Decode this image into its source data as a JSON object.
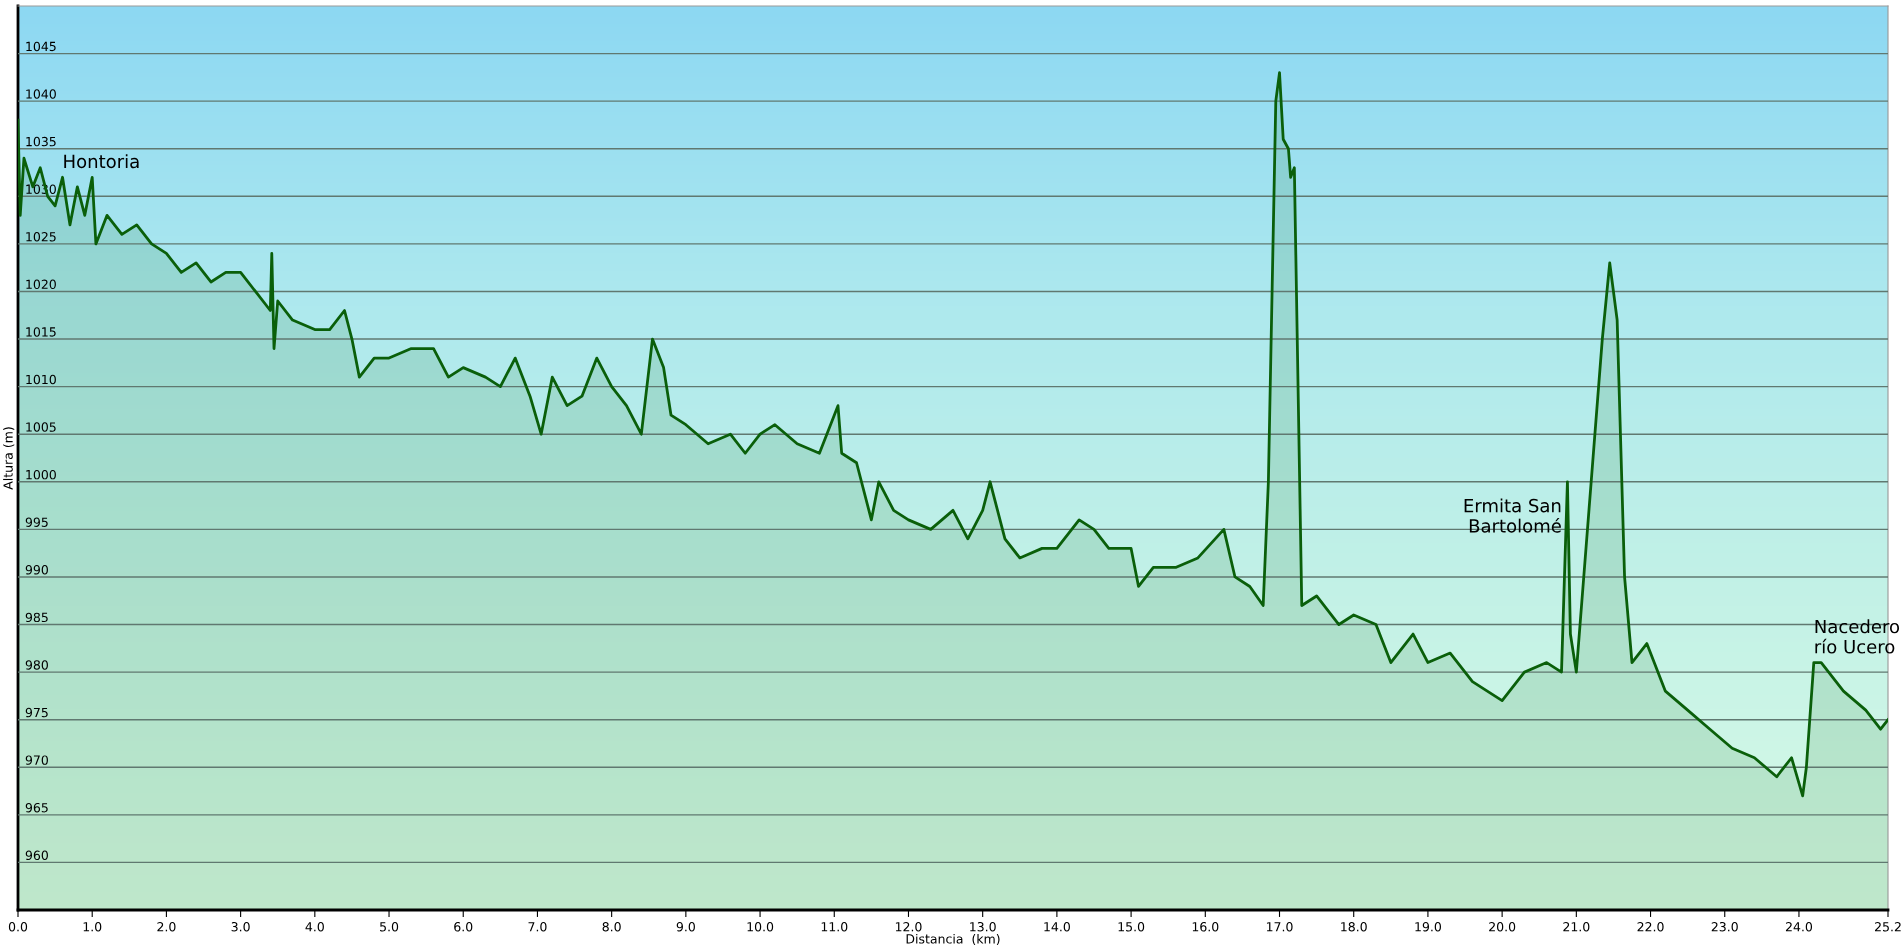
{
  "chart_data": {
    "type": "area",
    "xlabel": "Distancia  (km)",
    "ylabel": "Altura (m)",
    "xlim": [
      0,
      25.2
    ],
    "ylim": [
      955,
      1050
    ],
    "xticks": [
      {
        "value": 0,
        "label": "0.0"
      },
      {
        "value": 1,
        "label": "1.0"
      },
      {
        "value": 2,
        "label": "2.0"
      },
      {
        "value": 3,
        "label": "3.0"
      },
      {
        "value": 4,
        "label": "4.0"
      },
      {
        "value": 5,
        "label": "5.0"
      },
      {
        "value": 6,
        "label": "6.0"
      },
      {
        "value": 7,
        "label": "7.0"
      },
      {
        "value": 8,
        "label": "8.0"
      },
      {
        "value": 9,
        "label": "9.0"
      },
      {
        "value": 10,
        "label": "10.0"
      },
      {
        "value": 11,
        "label": "11.0"
      },
      {
        "value": 12,
        "label": "12.0"
      },
      {
        "value": 13,
        "label": "13.0"
      },
      {
        "value": 14,
        "label": "14.0"
      },
      {
        "value": 15,
        "label": "15.0"
      },
      {
        "value": 16,
        "label": "16.0"
      },
      {
        "value": 17,
        "label": "17.0"
      },
      {
        "value": 18,
        "label": "18.0"
      },
      {
        "value": 19,
        "label": "19.0"
      },
      {
        "value": 20,
        "label": "20.0"
      },
      {
        "value": 21,
        "label": "21.0"
      },
      {
        "value": 22,
        "label": "22.0"
      },
      {
        "value": 23,
        "label": "23.0"
      },
      {
        "value": 24,
        "label": "24.0"
      },
      {
        "value": 25.2,
        "label": "25.2"
      }
    ],
    "yticks": [
      960,
      965,
      970,
      975,
      980,
      985,
      990,
      995,
      1000,
      1005,
      1010,
      1015,
      1020,
      1025,
      1030,
      1035,
      1040,
      1045
    ],
    "grid": "y",
    "legend": false,
    "annotations": [
      {
        "text": "Hontoria",
        "x": 0.6,
        "y": 1032
      },
      {
        "text": "Ermita San\nBartolomé",
        "x": 20.88,
        "y": 1000
      },
      {
        "text": "Nacedero\nrío Ucero",
        "x": 24.2,
        "y": 981
      }
    ],
    "series": [
      {
        "color": "#0a5f0a",
        "x": [
          0.0,
          0.03,
          0.08,
          0.2,
          0.3,
          0.4,
          0.5,
          0.6,
          0.7,
          0.8,
          0.9,
          1.0,
          1.05,
          1.2,
          1.4,
          1.6,
          1.8,
          2.0,
          2.2,
          2.4,
          2.6,
          2.8,
          3.0,
          3.2,
          3.4,
          3.42,
          3.45,
          3.5,
          3.7,
          4.0,
          4.2,
          4.4,
          4.5,
          4.6,
          4.8,
          5.0,
          5.3,
          5.6,
          5.8,
          6.0,
          6.3,
          6.5,
          6.7,
          6.9,
          7.05,
          7.2,
          7.4,
          7.6,
          7.8,
          8.0,
          8.2,
          8.4,
          8.55,
          8.7,
          8.8,
          9.0,
          9.3,
          9.6,
          9.8,
          10.0,
          10.2,
          10.5,
          10.8,
          11.05,
          11.1,
          11.3,
          11.5,
          11.6,
          11.8,
          12.0,
          12.3,
          12.6,
          12.8,
          13.0,
          13.1,
          13.3,
          13.5,
          13.8,
          14.0,
          14.3,
          14.5,
          14.7,
          15.0,
          15.1,
          15.3,
          15.6,
          15.9,
          16.25,
          16.4,
          16.6,
          16.78,
          16.85,
          16.95,
          17.0,
          17.05,
          17.12,
          17.15,
          17.2,
          17.3,
          17.5,
          17.8,
          18.0,
          18.3,
          18.5,
          18.8,
          19.0,
          19.3,
          19.6,
          20.0,
          20.3,
          20.6,
          20.8,
          20.88,
          20.92,
          21.0,
          21.05,
          21.2,
          21.35,
          21.45,
          21.55,
          21.65,
          21.75,
          21.95,
          22.2,
          22.5,
          22.8,
          23.1,
          23.4,
          23.7,
          23.9,
          24.05,
          24.1,
          24.2,
          24.3,
          24.6,
          24.9,
          25.1,
          25.2
        ],
        "values": [
          1038,
          1028,
          1034,
          1031,
          1033,
          1030,
          1029,
          1032,
          1027,
          1031,
          1028,
          1032,
          1025,
          1028,
          1026,
          1027,
          1025,
          1024,
          1022,
          1023,
          1021,
          1022,
          1022,
          1020,
          1018,
          1024,
          1014,
          1019,
          1017,
          1016,
          1016,
          1018,
          1015,
          1011,
          1013,
          1013,
          1014,
          1014,
          1011,
          1012,
          1011,
          1010,
          1013,
          1009,
          1005,
          1011,
          1008,
          1009,
          1013,
          1010,
          1008,
          1005,
          1015,
          1012,
          1007,
          1006,
          1004,
          1005,
          1003,
          1005,
          1006,
          1004,
          1003,
          1008,
          1003,
          1002,
          996,
          1000,
          997,
          996,
          995,
          997,
          994,
          997,
          1000,
          994,
          992,
          993,
          993,
          996,
          995,
          993,
          993,
          989,
          991,
          991,
          992,
          995,
          990,
          989,
          987,
          1000,
          1040,
          1043,
          1036,
          1035,
          1032,
          1033,
          987,
          988,
          985,
          986,
          985,
          981,
          984,
          981,
          982,
          979,
          977,
          980,
          981,
          980,
          1000,
          984,
          980,
          985,
          1000,
          1015,
          1023,
          1017,
          990,
          981,
          983,
          978,
          976,
          974,
          972,
          971,
          969,
          971,
          967,
          970,
          981,
          981,
          978,
          976,
          974,
          975
        ]
      }
    ]
  }
}
